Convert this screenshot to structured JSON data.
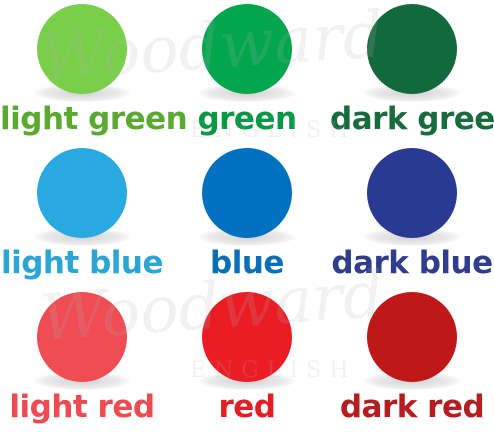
{
  "swatches": [
    {
      "label": "light green",
      "fill": "#79cf4a",
      "text_color": "#5aaa30"
    },
    {
      "label": "green",
      "fill": "#02a64d",
      "text_color": "#079846"
    },
    {
      "label": "dark green",
      "fill": "#12693b",
      "text_color": "#176b3c"
    },
    {
      "label": "light blue",
      "fill": "#28a9e2",
      "text_color": "#2aa5d6"
    },
    {
      "label": "blue",
      "fill": "#0071bf",
      "text_color": "#0b6fb8"
    },
    {
      "label": "dark blue",
      "fill": "#293a92",
      "text_color": "#2f3d8c"
    },
    {
      "label": "light red",
      "fill": "#f04c53",
      "text_color": "#ee4a50"
    },
    {
      "label": "red",
      "fill": "#eb1c24",
      "text_color": "#e41e25"
    },
    {
      "label": "dark red",
      "fill": "#bf1819",
      "text_color": "#b51d20"
    }
  ],
  "watermark": {
    "text": "Woodward",
    "subtext": "ENGLISH"
  }
}
